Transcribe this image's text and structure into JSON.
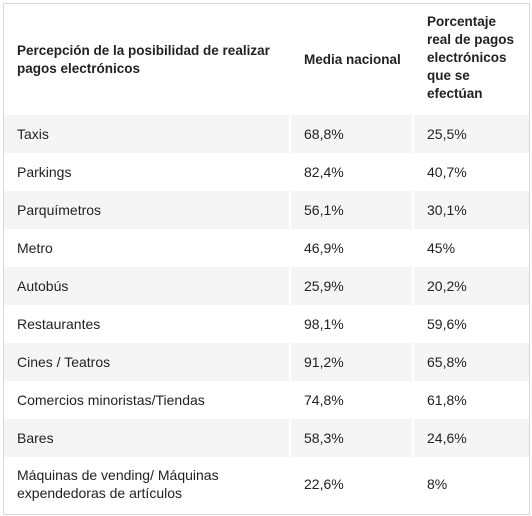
{
  "table": {
    "headers": [
      "Percepción de la posibilidad de realizar pagos electrónicos",
      "Media nacional",
      "Porcentaje real de pagos electrónicos que se efectúan"
    ],
    "rows": [
      [
        "Taxis",
        "68,8%",
        "25,5%"
      ],
      [
        "Parkings",
        "82,4%",
        "40,7%"
      ],
      [
        "Parquímetros",
        "56,1%",
        "30,1%"
      ],
      [
        "Metro",
        "46,9%",
        "45%"
      ],
      [
        "Autobús",
        "25,9%",
        "20,2%"
      ],
      [
        "Restaurantes",
        "98,1%",
        "59,6%"
      ],
      [
        "Cines / Teatros",
        "91,2%",
        "65,8%"
      ],
      [
        "Comercios minoristas/Tiendas",
        "74,8%",
        "61,8%"
      ],
      [
        "Bares",
        "58,3%",
        "24,6%"
      ],
      [
        "Máquinas de vending/ Máquinas expendedoras de artículos",
        "22,6%",
        "8%"
      ]
    ]
  }
}
